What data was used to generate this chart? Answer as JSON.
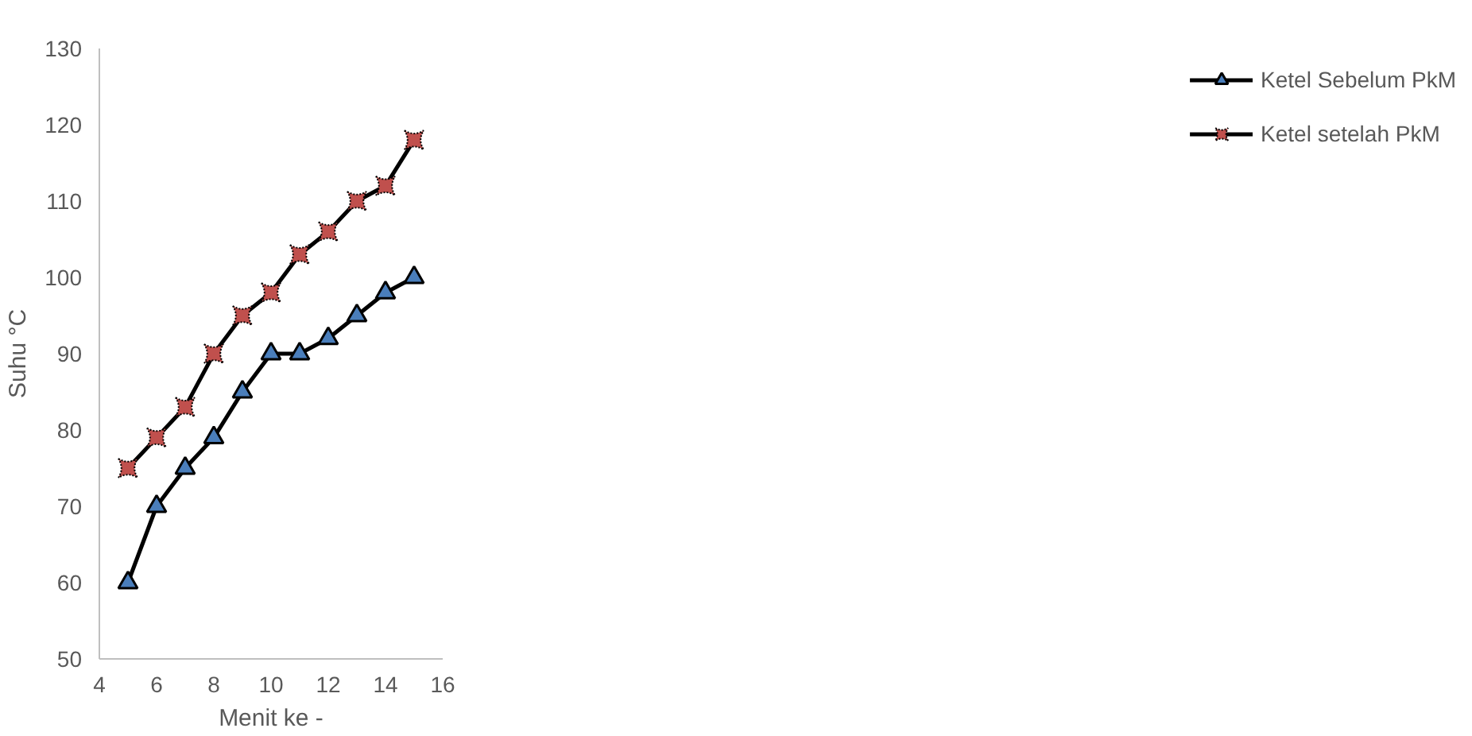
{
  "chart_data": {
    "type": "line",
    "xlabel": "Menit ke -",
    "ylabel": "Suhu °C",
    "x": [
      5,
      6,
      7,
      8,
      9,
      10,
      11,
      12,
      13,
      14,
      15
    ],
    "xlim": [
      4,
      16
    ],
    "xticks": [
      4,
      6,
      8,
      10,
      12,
      14,
      16
    ],
    "ylim": [
      50,
      130
    ],
    "yticks": [
      50,
      60,
      70,
      80,
      90,
      100,
      110,
      120,
      130
    ],
    "grid": false,
    "legend": "right",
    "series": [
      {
        "name": "Ketel Sebelum PkM",
        "color": "#4a7ebb",
        "marker": "triangle",
        "values": [
          60,
          70,
          75,
          79,
          85,
          90,
          90,
          92,
          95,
          98,
          100
        ]
      },
      {
        "name": "Ketel setelah PkM",
        "color": "#c0504d",
        "marker": "cross",
        "values": [
          75,
          79,
          83,
          90,
          95,
          98,
          103,
          106,
          110,
          112,
          118
        ]
      }
    ]
  }
}
